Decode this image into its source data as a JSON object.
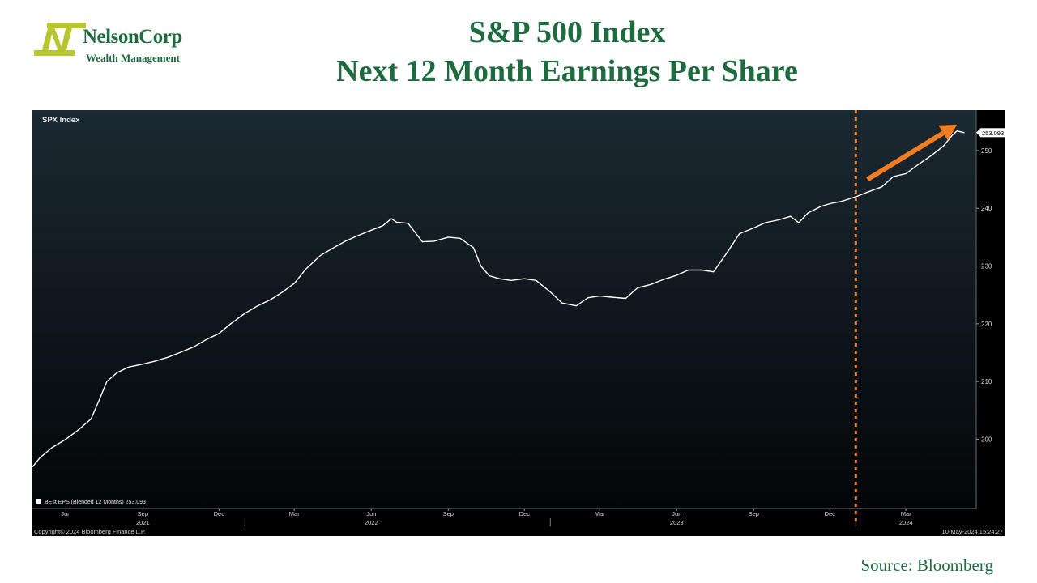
{
  "header": {
    "logo_name": "NelsonCorp",
    "logo_sub": "Wealth Management",
    "title_line1": "S&P 500 Index",
    "title_line2": "Next 12 Month Earnings Per Share"
  },
  "footer": {
    "source": "Source:  Bloomberg"
  },
  "colors": {
    "brand_green": "#1d6b3e",
    "logo_yellow": "#b8c531",
    "highlight_orange": "#f07c24",
    "line_white": "#ffffff"
  },
  "chart_data": {
    "type": "line",
    "panel_label": "SPX Index",
    "legend_text": "BEst EPS (Blended 12 Months) 253.093",
    "last_value_label": "253.093",
    "footer_left": "Copyright© 2024 Bloomberg Finance L.P.",
    "footer_right": "10-May-2024 15:24:27",
    "ylim": [
      188,
      257
    ],
    "y_ticks": [
      200,
      210,
      220,
      230,
      240,
      250
    ],
    "xlim": [
      "2021-04-22",
      "2024-05-24"
    ],
    "x_month_ticks": [
      {
        "date": "2021-06-01",
        "label": "Jun"
      },
      {
        "date": "2021-09-01",
        "label": "Sep"
      },
      {
        "date": "2021-12-01",
        "label": "Dec"
      },
      {
        "date": "2022-03-01",
        "label": "Mar"
      },
      {
        "date": "2022-06-01",
        "label": "Jun"
      },
      {
        "date": "2022-09-01",
        "label": "Sep"
      },
      {
        "date": "2022-12-01",
        "label": "Dec"
      },
      {
        "date": "2023-03-01",
        "label": "Mar"
      },
      {
        "date": "2023-06-01",
        "label": "Jun"
      },
      {
        "date": "2023-09-01",
        "label": "Sep"
      },
      {
        "date": "2023-12-01",
        "label": "Dec"
      },
      {
        "date": "2024-03-01",
        "label": "Mar"
      }
    ],
    "x_year_labels": [
      {
        "date": "2021-09-01",
        "label": "2021"
      },
      {
        "date": "2022-06-01",
        "label": "2022"
      },
      {
        "date": "2023-06-01",
        "label": "2023"
      },
      {
        "date": "2024-03-01",
        "label": "2024"
      }
    ],
    "year_dividers": [
      "2022-01-01",
      "2023-01-01",
      "2024-01-01"
    ],
    "vertical_marker_date": "2024-01-01",
    "trend_arrow": {
      "from": {
        "x": "2024-01-15",
        "y": 245
      },
      "to": {
        "x": "2024-05-01",
        "y": 254.5
      }
    },
    "series": [
      {
        "name": "BEst EPS (Blended 12 Months)",
        "points": [
          [
            "2021-04-22",
            195.2
          ],
          [
            "2021-05-01",
            196.8
          ],
          [
            "2021-05-15",
            198.5
          ],
          [
            "2021-06-01",
            200.0
          ],
          [
            "2021-06-15",
            201.5
          ],
          [
            "2021-07-01",
            203.5
          ],
          [
            "2021-07-10",
            206.5
          ],
          [
            "2021-07-20",
            210.0
          ],
          [
            "2021-08-01",
            211.5
          ],
          [
            "2021-08-15",
            212.5
          ],
          [
            "2021-09-01",
            213.0
          ],
          [
            "2021-09-15",
            213.5
          ],
          [
            "2021-10-01",
            214.2
          ],
          [
            "2021-10-15",
            215.0
          ],
          [
            "2021-11-01",
            216.0
          ],
          [
            "2021-11-15",
            217.2
          ],
          [
            "2021-12-01",
            218.3
          ],
          [
            "2021-12-15",
            220.0
          ],
          [
            "2022-01-01",
            221.8
          ],
          [
            "2022-01-15",
            223.0
          ],
          [
            "2022-02-01",
            224.2
          ],
          [
            "2022-02-15",
            225.5
          ],
          [
            "2022-03-01",
            227.0
          ],
          [
            "2022-03-15",
            229.5
          ],
          [
            "2022-04-01",
            231.8
          ],
          [
            "2022-04-15",
            233.0
          ],
          [
            "2022-05-01",
            234.3
          ],
          [
            "2022-05-15",
            235.2
          ],
          [
            "2022-06-01",
            236.2
          ],
          [
            "2022-06-15",
            237.0
          ],
          [
            "2022-06-25",
            238.2
          ],
          [
            "2022-07-01",
            237.6
          ],
          [
            "2022-07-15",
            237.4
          ],
          [
            "2022-08-01",
            234.2
          ],
          [
            "2022-08-15",
            234.3
          ],
          [
            "2022-09-01",
            235.0
          ],
          [
            "2022-09-15",
            234.8
          ],
          [
            "2022-10-01",
            233.2
          ],
          [
            "2022-10-10",
            230.0
          ],
          [
            "2022-10-20",
            228.3
          ],
          [
            "2022-11-01",
            227.8
          ],
          [
            "2022-11-15",
            227.5
          ],
          [
            "2022-12-01",
            227.8
          ],
          [
            "2022-12-15",
            227.5
          ],
          [
            "2023-01-01",
            225.5
          ],
          [
            "2023-01-15",
            223.6
          ],
          [
            "2023-02-01",
            223.1
          ],
          [
            "2023-02-15",
            224.5
          ],
          [
            "2023-03-01",
            224.8
          ],
          [
            "2023-03-15",
            224.6
          ],
          [
            "2023-04-01",
            224.4
          ],
          [
            "2023-04-15",
            226.2
          ],
          [
            "2023-05-01",
            226.8
          ],
          [
            "2023-05-15",
            227.6
          ],
          [
            "2023-06-01",
            228.4
          ],
          [
            "2023-06-15",
            229.3
          ],
          [
            "2023-07-01",
            229.3
          ],
          [
            "2023-07-15",
            229.0
          ],
          [
            "2023-08-01",
            232.5
          ],
          [
            "2023-08-15",
            235.6
          ],
          [
            "2023-09-01",
            236.6
          ],
          [
            "2023-09-15",
            237.5
          ],
          [
            "2023-10-01",
            238.0
          ],
          [
            "2023-10-15",
            238.6
          ],
          [
            "2023-10-25",
            237.5
          ],
          [
            "2023-11-05",
            239.2
          ],
          [
            "2023-11-20",
            240.3
          ],
          [
            "2023-12-01",
            240.8
          ],
          [
            "2023-12-15",
            241.2
          ],
          [
            "2024-01-01",
            242.0
          ],
          [
            "2024-01-15",
            242.8
          ],
          [
            "2024-02-01",
            243.7
          ],
          [
            "2024-02-15",
            245.5
          ],
          [
            "2024-03-01",
            246.0
          ],
          [
            "2024-03-15",
            247.5
          ],
          [
            "2024-04-01",
            249.2
          ],
          [
            "2024-04-15",
            250.8
          ],
          [
            "2024-04-25",
            252.6
          ],
          [
            "2024-05-01",
            253.4
          ],
          [
            "2024-05-10",
            253.1
          ]
        ]
      }
    ]
  }
}
